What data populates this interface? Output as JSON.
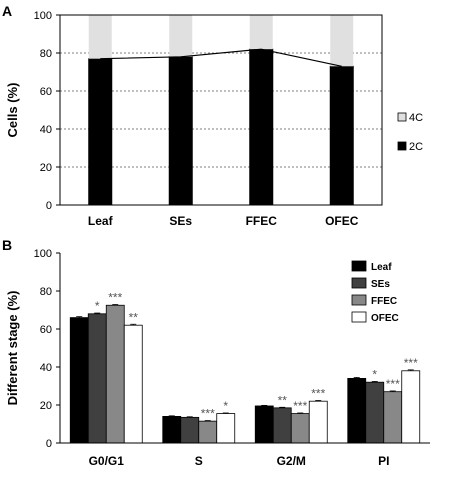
{
  "chart_data": [
    {
      "panel_label": "A",
      "type": "bar",
      "stacked": true,
      "categories": [
        "Leaf",
        "SEs",
        "FFEC",
        "OFEC"
      ],
      "series": [
        {
          "name": "2C",
          "values": [
            77,
            78,
            82,
            73
          ],
          "color": "#000000"
        },
        {
          "name": "4C",
          "values": [
            23,
            22,
            18,
            27
          ],
          "color": "#e0e0e0"
        }
      ],
      "connecting_line": true,
      "ylabel": "Cells (%)",
      "xlabel": "",
      "ylim": [
        0,
        100
      ],
      "yticks": [
        0,
        20,
        40,
        60,
        80,
        100
      ],
      "grid": "dashed-horizontal",
      "legend": "right",
      "legend_entries": [
        "4C",
        "2C"
      ]
    },
    {
      "panel_label": "B",
      "type": "bar",
      "grouped": true,
      "categories": [
        "G0/G1",
        "S",
        "G2/M",
        "PI"
      ],
      "series": [
        {
          "name": "Leaf",
          "values": [
            66,
            14,
            19.5,
            34
          ],
          "errors": [
            0.5,
            0.3,
            0.3,
            0.5
          ],
          "sig": [
            "",
            "",
            "",
            ""
          ],
          "color": "#000000"
        },
        {
          "name": "SEs",
          "values": [
            68,
            13.5,
            18.5,
            32
          ],
          "errors": [
            0.4,
            0.3,
            0.3,
            0.4
          ],
          "sig": [
            "*",
            "",
            "**",
            "*"
          ],
          "color": "#404040"
        },
        {
          "name": "FFEC",
          "values": [
            72.5,
            11.5,
            15.5,
            27
          ],
          "errors": [
            0.4,
            0.3,
            0.3,
            0.4
          ],
          "sig": [
            "***",
            "***",
            "***",
            "***"
          ],
          "color": "#888888"
        },
        {
          "name": "OFEC",
          "values": [
            62,
            15.5,
            22,
            38
          ],
          "errors": [
            0.5,
            0.3,
            0.4,
            0.5
          ],
          "sig": [
            "**",
            "*",
            "***",
            "***"
          ],
          "color": "#ffffff"
        }
      ],
      "ylabel": "Different stage (%)",
      "xlabel": "",
      "ylim": [
        0,
        100
      ],
      "yticks": [
        0,
        20,
        40,
        60,
        80,
        100
      ],
      "grid": false,
      "legend": "top-right"
    }
  ]
}
